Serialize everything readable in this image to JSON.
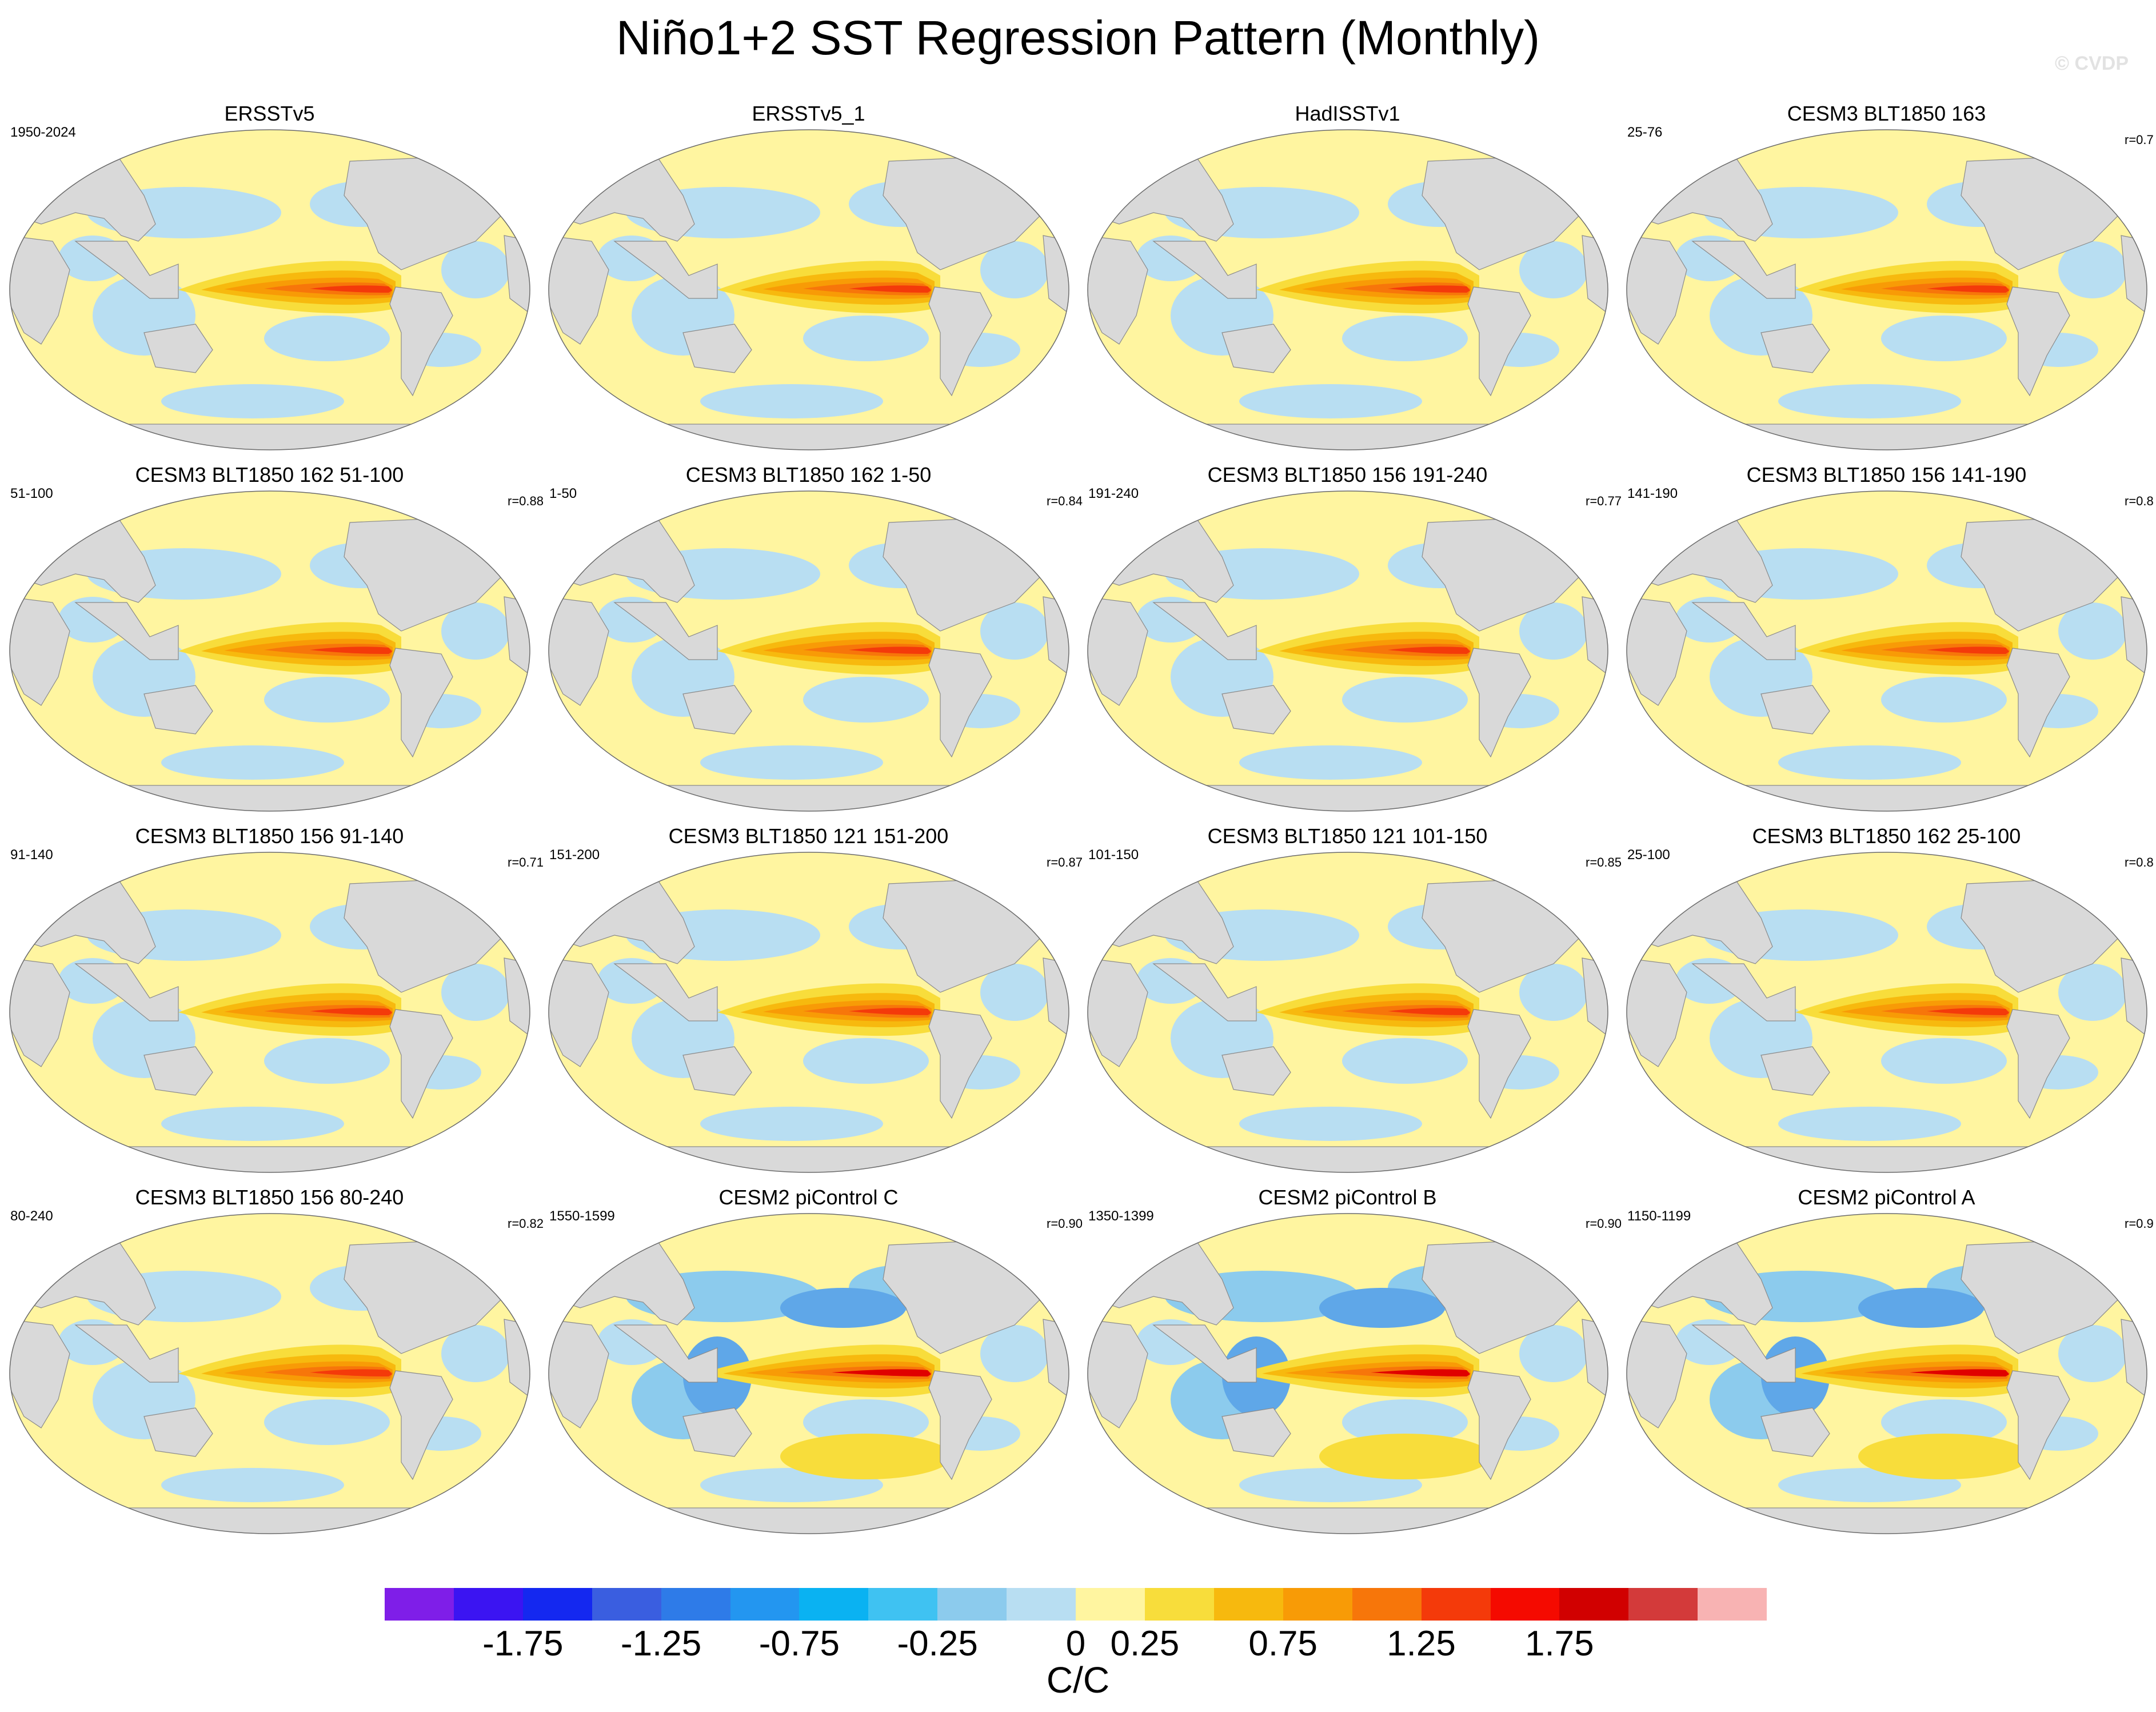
{
  "title": "Niño1+2 SST Regression Pattern (Monthly)",
  "credit": "© CVDP",
  "panels": [
    {
      "title": "ERSSTv5",
      "years": "1950-2024",
      "r": "",
      "style": 0
    },
    {
      "title": "ERSSTv5_1",
      "years": "",
      "r": "",
      "style": 0
    },
    {
      "title": "HadISSTv1",
      "years": "",
      "r": "",
      "style": 0
    },
    {
      "title": "CESM3 BLT1850 163",
      "years": "25-76",
      "r": "r=0.7",
      "style": 1
    },
    {
      "title": "CESM3 BLT1850 162 51-100",
      "years": "51-100",
      "r": "r=0.88",
      "style": 1
    },
    {
      "title": "CESM3 BLT1850 162 1-50",
      "years": "1-50",
      "r": "r=0.84",
      "style": 1
    },
    {
      "title": "CESM3 BLT1850 156 191-240",
      "years": "191-240",
      "r": "r=0.77",
      "style": 1
    },
    {
      "title": "CESM3 BLT1850 156 141-190",
      "years": "141-190",
      "r": "r=0.8",
      "style": 1
    },
    {
      "title": "CESM3 BLT1850 156 91-140",
      "years": "91-140",
      "r": "r=0.71",
      "style": 1
    },
    {
      "title": "CESM3 BLT1850 121 151-200",
      "years": "151-200",
      "r": "r=0.87",
      "style": 1
    },
    {
      "title": "CESM3 BLT1850 121 101-150",
      "years": "101-150",
      "r": "r=0.85",
      "style": 1
    },
    {
      "title": "CESM3 BLT1850 162 25-100",
      "years": "25-100",
      "r": "r=0.8",
      "style": 1
    },
    {
      "title": "CESM3 BLT1850 156 80-240",
      "years": "80-240",
      "r": "r=0.82",
      "style": 1
    },
    {
      "title": "CESM2 piControl C",
      "years": "1550-1599",
      "r": "r=0.90",
      "style": 2
    },
    {
      "title": "CESM2 piControl B",
      "years": "1350-1399",
      "r": "r=0.90",
      "style": 2
    },
    {
      "title": "CESM2 piControl A",
      "years": "1150-1199",
      "r": "r=0.9",
      "style": 2
    }
  ],
  "colorbar": {
    "colors": [
      "#7f1ee8",
      "#3b14f2",
      "#1428f0",
      "#3a5ee0",
      "#2e7be8",
      "#2396f0",
      "#0ab2f2",
      "#3fc2f2",
      "#8ccbed",
      "#b8def2",
      "#fff5a0",
      "#f8dd3b",
      "#f7b90e",
      "#f89b06",
      "#f7760a",
      "#f43a0a",
      "#f50a00",
      "#d10000",
      "#d33a3a",
      "#f8b3b3"
    ],
    "tick_labels": [
      "-1.75",
      "-1.25",
      "-0.75",
      "-0.25",
      "0",
      "0.25",
      "0.75",
      "1.25",
      "1.75"
    ],
    "units": "C/C"
  }
}
